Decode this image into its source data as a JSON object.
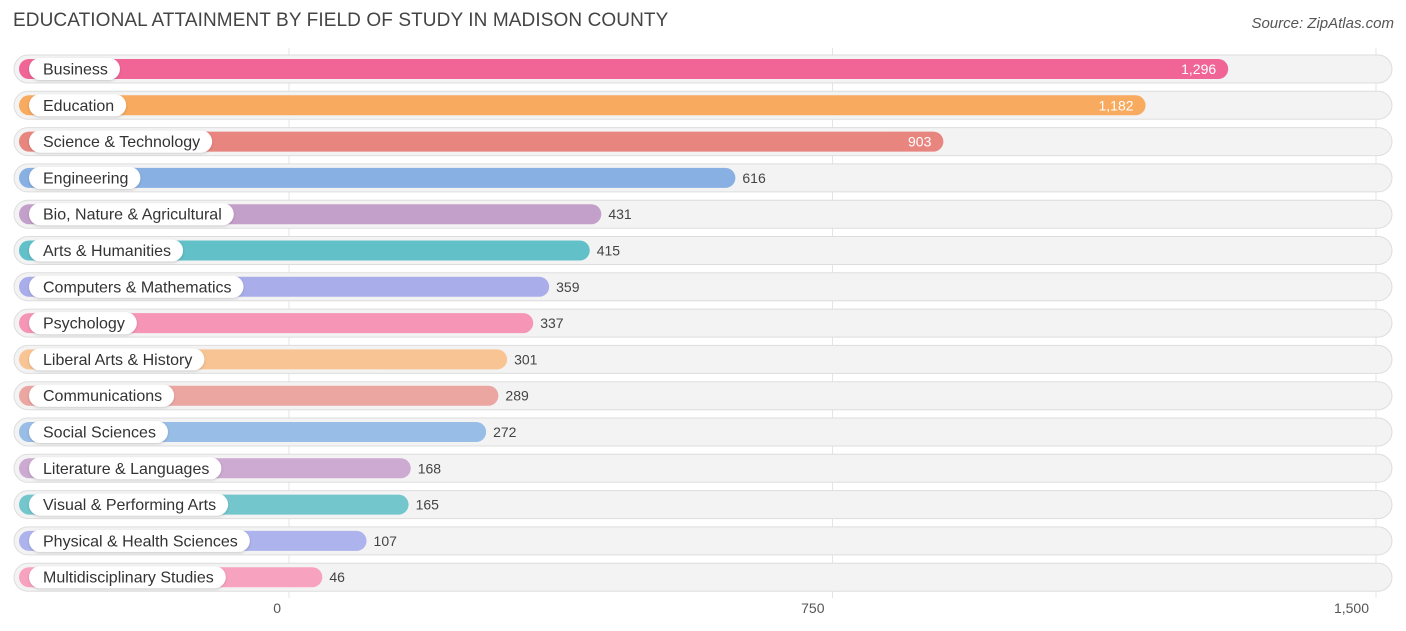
{
  "title": "EDUCATIONAL ATTAINMENT BY FIELD OF STUDY IN MADISON COUNTY",
  "source": "Source: ZipAtlas.com",
  "chart_data": {
    "type": "bar",
    "orientation": "horizontal",
    "categories": [
      "Business",
      "Education",
      "Science & Technology",
      "Engineering",
      "Bio, Nature & Agricultural",
      "Arts & Humanities",
      "Computers & Mathematics",
      "Psychology",
      "Liberal Arts & History",
      "Communications",
      "Social Sciences",
      "Literature & Languages",
      "Visual & Performing Arts",
      "Physical & Health Sciences",
      "Multidisciplinary Studies"
    ],
    "values": [
      1296,
      1182,
      903,
      616,
      431,
      415,
      359,
      337,
      301,
      289,
      272,
      168,
      165,
      107,
      46
    ],
    "value_labels": [
      "1,296",
      "1,182",
      "903",
      "616",
      "431",
      "415",
      "359",
      "337",
      "301",
      "289",
      "272",
      "168",
      "165",
      "107",
      "46"
    ],
    "colors": [
      "#f06595",
      "#f8aa5f",
      "#e8857f",
      "#89b0e3",
      "#c3a0c9",
      "#62c0c8",
      "#a9aeea",
      "#f695b6",
      "#f9c493",
      "#eba6a2",
      "#98bde6",
      "#ccaad1",
      "#74c6cd",
      "#adb3ec",
      "#f7a3c0"
    ],
    "xlim": [
      0,
      1500
    ],
    "x_ticks": [
      0,
      750,
      1500
    ],
    "x_tick_labels": [
      "0",
      "750",
      "1,500"
    ],
    "grid": true,
    "legend": "none"
  }
}
